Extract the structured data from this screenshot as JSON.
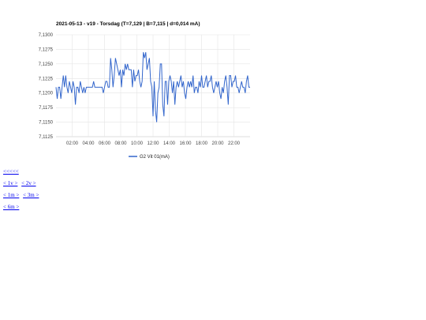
{
  "chart_data": {
    "type": "line",
    "title": "2021-05-13 - v19 - Torsdag (T=7,129 | B=7,115 | d=0,014 mA)",
    "xlabel": "",
    "ylabel": "",
    "x_range_hours": [
      0,
      24
    ],
    "ylim": [
      7.1125,
      7.13
    ],
    "yticks": [
      "7,1125",
      "7,1150",
      "7,1175",
      "7,1200",
      "7,1225",
      "7,1250",
      "7,1275",
      "7,1300"
    ],
    "xticks": [
      "02:00",
      "04:00",
      "06:00",
      "08:00",
      "10:00",
      "12:00",
      "14:00",
      "16:00",
      "18:00",
      "20:00",
      "22:00"
    ],
    "grid": true,
    "legend": "bottom",
    "color": "#3366cc",
    "series": [
      {
        "name": "G2 Vit 01(mA)",
        "values": [
          7.121,
          7.119,
          7.121,
          7.121,
          7.119,
          7.121,
          7.123,
          7.121,
          7.123,
          7.121,
          7.12,
          7.122,
          7.121,
          7.12,
          7.122,
          7.121,
          7.118,
          7.121,
          7.121,
          7.12,
          7.122,
          7.121,
          7.12,
          7.121,
          7.12,
          7.121,
          7.121,
          7.121,
          7.121,
          7.121,
          7.121,
          7.122,
          7.121,
          7.121,
          7.121,
          7.121,
          7.121,
          7.121,
          7.121,
          7.12,
          7.121,
          7.122,
          7.122,
          7.121,
          7.121,
          7.126,
          7.124,
          7.121,
          7.123,
          7.126,
          7.125,
          7.124,
          7.123,
          7.124,
          7.121,
          7.124,
          7.123,
          7.125,
          7.124,
          7.125,
          7.124,
          7.124,
          7.124,
          7.121,
          7.124,
          7.122,
          7.123,
          7.123,
          7.124,
          7.122,
          7.121,
          7.122,
          7.127,
          7.126,
          7.127,
          7.124,
          7.125,
          7.126,
          7.122,
          7.121,
          7.116,
          7.122,
          7.117,
          7.115,
          7.12,
          7.121,
          7.125,
          7.125,
          7.118,
          7.116,
          7.122,
          7.122,
          7.118,
          7.122,
          7.123,
          7.122,
          7.12,
          7.122,
          7.118,
          7.121,
          7.122,
          7.121,
          7.122,
          7.123,
          7.121,
          7.122,
          7.12,
          7.119,
          7.121,
          7.122,
          7.121,
          7.122,
          7.121,
          7.123,
          7.12,
          7.121,
          7.121,
          7.12,
          7.122,
          7.121,
          7.123,
          7.121,
          7.121,
          7.122,
          7.123,
          7.121,
          7.122,
          7.122,
          7.123,
          7.121,
          7.12,
          7.121,
          7.122,
          7.121,
          7.122,
          7.12,
          7.119,
          7.121,
          7.12,
          7.122,
          7.123,
          7.121,
          7.118,
          7.123,
          7.123,
          7.121,
          7.122,
          7.122,
          7.123,
          7.121,
          7.121,
          7.12,
          7.121,
          7.122,
          7.121,
          7.121,
          7.12,
          7.122,
          7.123,
          7.121,
          7.121
        ]
      }
    ]
  },
  "nav": {
    "all": "<<<<<",
    "back_1v": "< 1v >",
    "back_2v": "< 2v >",
    "back_1m": "< 1m >",
    "back_3m": "< 3m >",
    "back_6m": "< 6m >"
  }
}
